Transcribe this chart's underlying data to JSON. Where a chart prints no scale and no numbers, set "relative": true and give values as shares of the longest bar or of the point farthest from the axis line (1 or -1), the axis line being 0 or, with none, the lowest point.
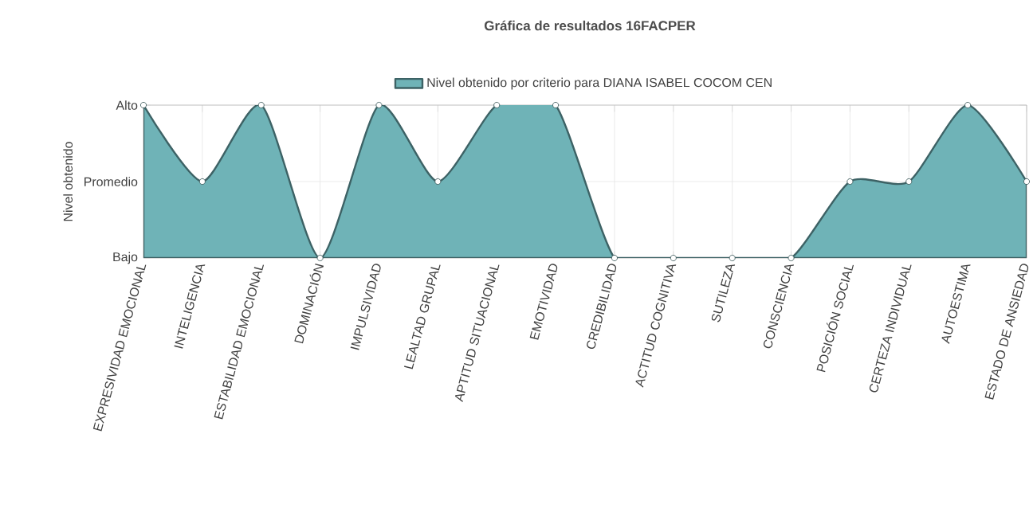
{
  "chart_data": {
    "type": "area",
    "title": "Gráfica de resultados 16FACPER",
    "ylabel": "Nivel obtenido",
    "categories": [
      "EXPRESIVIDAD EMOCIONAL",
      "INTELIGENCIA",
      "ESTABILIDAD EMOCIONAL",
      "DOMINACIÓN",
      "IMPULSIVIDAD",
      "LEALTAD GRUPAL",
      "APTITUD SITUACIONAL",
      "EMOTIVIDAD",
      "CREDIBILIDAD",
      "ACTITUD COGNITIVA",
      "SUTILEZA",
      "CONSCIENCIA",
      "POSICIÓN SOCIAL",
      "CERTEZA INDIVIDUAL",
      "AUTOESTIMA",
      "ESTADO DE ANSIEDAD"
    ],
    "series": [
      {
        "name": "Nivel obtenido por criterio para DIANA ISABEL COCOM CEN",
        "color": "#6fb3b7",
        "values": [
          1,
          0.5,
          1,
          0,
          1,
          0.5,
          1,
          1,
          0,
          0,
          0,
          0,
          0.5,
          0.5,
          1,
          0.5
        ]
      }
    ],
    "relative": true,
    "annotations": [
      "Alto",
      "Promedio",
      "Bajo"
    ],
    "grid": true,
    "legend": "top",
    "marker": "circle",
    "line_style": "solid"
  }
}
